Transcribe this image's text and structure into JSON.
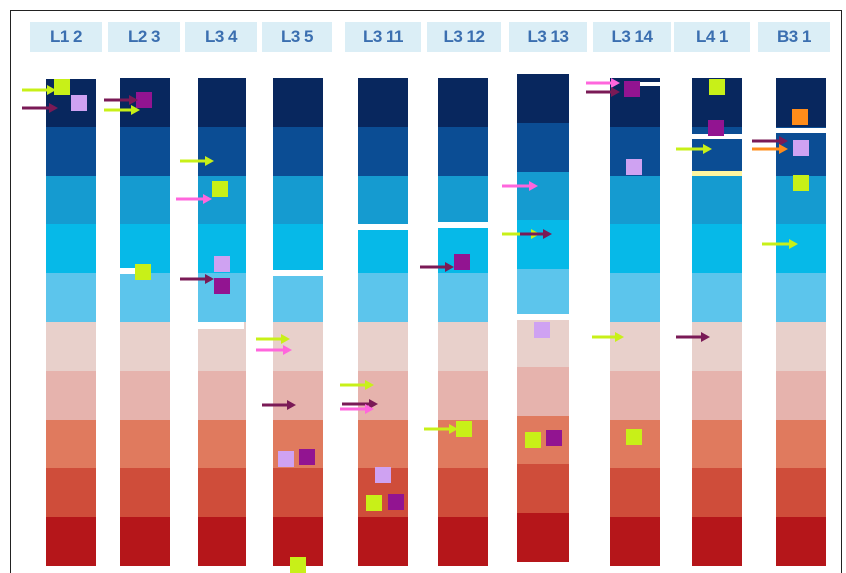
{
  "columns": [
    {
      "label": "L1 2"
    },
    {
      "label": "L2 3"
    },
    {
      "label": "L3 4"
    },
    {
      "label": "L3 5"
    },
    {
      "label": "L3 11"
    },
    {
      "label": "L3 12"
    },
    {
      "label": "L3 13"
    },
    {
      "label": "L3 14"
    },
    {
      "label": "L4 1"
    },
    {
      "label": "B3 1"
    }
  ],
  "band_colors": [
    "#08275e",
    "#0b4d94",
    "#159bd0",
    "#06b9e8",
    "#5cc5ec",
    "#e8d0cb",
    "#e6b3ad",
    "#e07a5e",
    "#cf4d3a",
    "#b5161a"
  ],
  "marker_colors": {
    "lime": "#c8f018",
    "light-purple": "#cfa2f2",
    "dark-purple": "#921491",
    "pink": "#ff66dd",
    "maroon": "#7a1a56",
    "orange": "#ff8c1a",
    "pale-yellow": "#fff6a0"
  }
}
